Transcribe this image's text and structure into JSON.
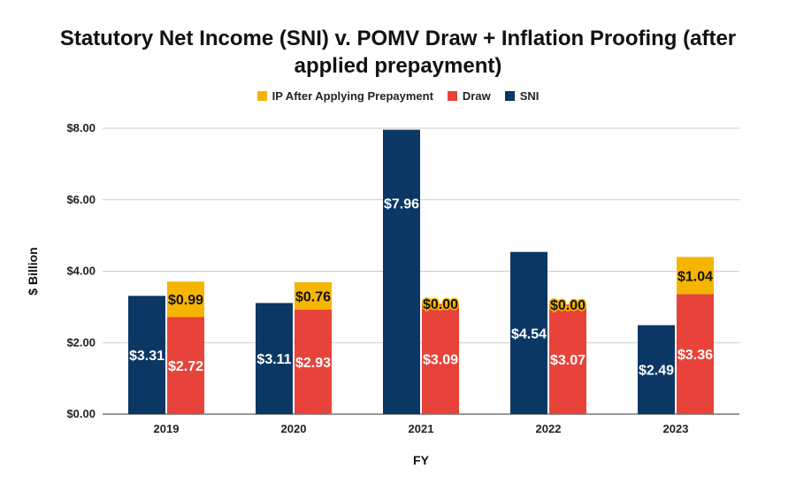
{
  "chart_data": {
    "type": "bar",
    "title_line1": "Statutory Net Income (SNI) v. POMV Draw + Inflation Proofing (after",
    "title_line2": "applied prepayment)",
    "xlabel": "FY",
    "ylabel": "$ Billion",
    "ylim": [
      0,
      8
    ],
    "y_ticks": [
      "$0.00",
      "$2.00",
      "$4.00",
      "$6.00",
      "$8.00"
    ],
    "y_tick_values": [
      0,
      2,
      4,
      6,
      8
    ],
    "grid": true,
    "legend_position": "top-center",
    "categories": [
      "2019",
      "2020",
      "2021",
      "2022",
      "2023"
    ],
    "series": [
      {
        "name": "IP After Applying Prepayment",
        "color": "#f6b500",
        "values": [
          0.99,
          0.76,
          0.0,
          0.0,
          1.04
        ],
        "labels": [
          "$0.99",
          "$0.76",
          "$0.00",
          "$0.00",
          "$1.04"
        ]
      },
      {
        "name": "Draw",
        "color": "#e8433a",
        "values": [
          2.72,
          2.93,
          3.09,
          3.07,
          3.36
        ],
        "labels": [
          "$2.72",
          "$2.93",
          "$3.09",
          "$3.07",
          "$3.36"
        ]
      },
      {
        "name": "SNI",
        "color": "#0a3763",
        "values": [
          3.31,
          3.11,
          7.96,
          4.54,
          2.49
        ],
        "labels": [
          "$3.31",
          "$3.11",
          "$7.96",
          "$4.54",
          "$2.49"
        ]
      }
    ]
  }
}
